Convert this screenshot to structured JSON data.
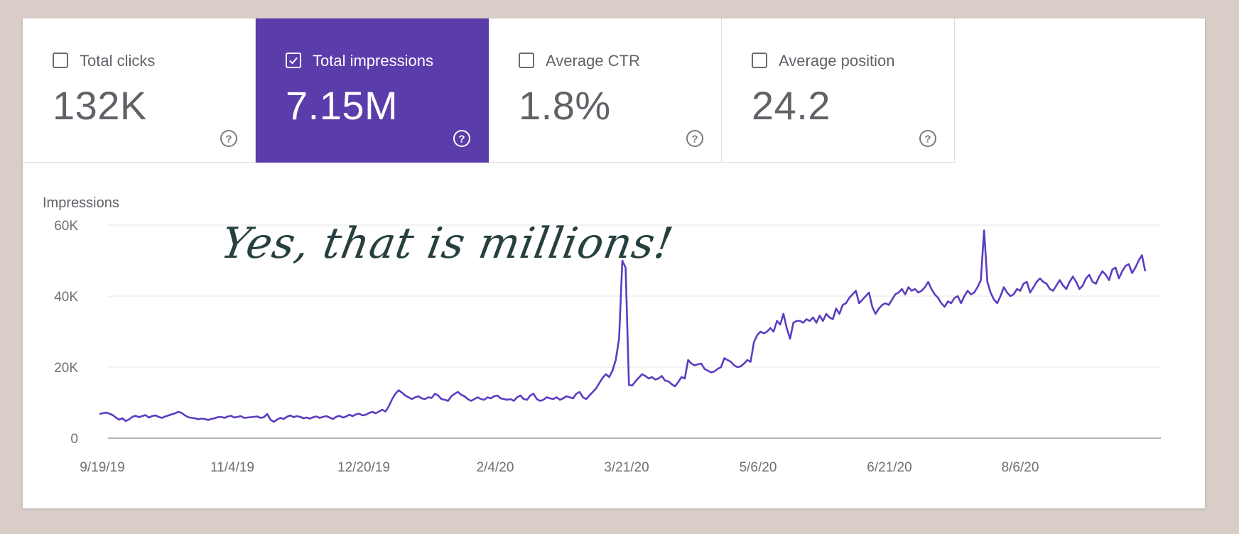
{
  "metrics": [
    {
      "label": "Total clicks",
      "value": "132K",
      "checked": false
    },
    {
      "label": "Total impressions",
      "value": "7.15M",
      "checked": true
    },
    {
      "label": "Average CTR",
      "value": "1.8%",
      "checked": false
    },
    {
      "label": "Average position",
      "value": "24.2",
      "checked": false
    }
  ],
  "annotation": "Yes, that is millions!",
  "colors": {
    "accent": "#5a3dab",
    "line": "#5b3cc0",
    "background": "#d9cdc8",
    "card": "#ffffff"
  },
  "icons": {
    "checkbox": "checkbox-icon",
    "help": "help-circle-icon"
  },
  "chart_data": {
    "type": "line",
    "title": "",
    "ylabel": "Impressions",
    "xlabel": "",
    "ylim": [
      0,
      60000
    ],
    "yticks": [
      0,
      20000,
      40000,
      60000
    ],
    "ytick_labels": [
      "0",
      "20K",
      "40K",
      "60K"
    ],
    "xtick_labels": [
      "9/19/19",
      "11/4/19",
      "12/20/19",
      "2/4/20",
      "3/21/20",
      "5/6/20",
      "6/21/20",
      "8/6/20"
    ],
    "x_start": "9/19/19",
    "grid": true,
    "legend": "none",
    "series": [
      {
        "values": [
          6800,
          7000,
          7200,
          6900,
          6500,
          5800,
          5200,
          5600,
          4800,
          5300,
          6000,
          6300,
          5900,
          6200,
          6500,
          5800,
          6200,
          6400,
          6000,
          5700,
          6100,
          6400,
          6700,
          7000,
          7400,
          7100,
          6400,
          5900,
          5700,
          5600,
          5300,
          5500,
          5400,
          5100,
          5400,
          5600,
          5900,
          6000,
          5700,
          6100,
          6300,
          5800,
          6000,
          6200,
          5700,
          5800,
          5900,
          6000,
          6100,
          5700,
          5900,
          6800,
          5200,
          4600,
          5200,
          5700,
          5400,
          6000,
          6400,
          5900,
          6200,
          6000,
          5600,
          5800,
          5500,
          5900,
          6100,
          5700,
          6000,
          6200,
          5800,
          5400,
          6000,
          6300,
          5800,
          6100,
          6600,
          6200,
          6700,
          6900,
          6400,
          6600,
          7100,
          7400,
          7000,
          7500,
          8000,
          7500,
          9000,
          11000,
          12500,
          13500,
          12800,
          12000,
          11500,
          11000,
          11500,
          11800,
          11200,
          11000,
          11500,
          11300,
          12500,
          12000,
          11000,
          10800,
          10500,
          11800,
          12500,
          13000,
          12200,
          11800,
          11000,
          10500,
          11000,
          11500,
          11000,
          10800,
          11500,
          11200,
          11800,
          12000,
          11200,
          11000,
          10800,
          11000,
          10500,
          11500,
          12000,
          11000,
          10800,
          12000,
          12500,
          11000,
          10500,
          10800,
          11500,
          11200,
          11000,
          11500,
          10800,
          11200,
          11800,
          11500,
          11200,
          12500,
          13000,
          11500,
          11000,
          12000,
          13000,
          14000,
          15500,
          17000,
          18000,
          17200,
          19000,
          22000,
          28000,
          50000,
          48000,
          15000,
          14800,
          16000,
          17000,
          18000,
          17500,
          16800,
          17200,
          16500,
          16800,
          17500,
          16200,
          16000,
          15200,
          14600,
          15800,
          17200,
          16800,
          22000,
          21000,
          20500,
          20800,
          21000,
          19500,
          19000,
          18500,
          18800,
          19500,
          20000,
          22500,
          22000,
          21500,
          20500,
          20000,
          20200,
          21000,
          22000,
          21500,
          27000,
          29000,
          30000,
          29500,
          30000,
          31000,
          30000,
          33000,
          32000,
          35000,
          31000,
          28000,
          32500,
          33000,
          33000,
          32500,
          33500,
          33000,
          34000,
          32500,
          34500,
          33000,
          35000,
          34000,
          33500,
          36500,
          35000,
          37500,
          38000,
          39500,
          40500,
          41500,
          38000,
          39000,
          40000,
          41000,
          37000,
          35000,
          36500,
          37500,
          38000,
          37500,
          39000,
          40500,
          41000,
          42000,
          40500,
          42500,
          41500,
          42000,
          41000,
          41500,
          42500,
          44000,
          42000,
          40500,
          39500,
          38000,
          37000,
          38500,
          38000,
          39500,
          40000,
          38000,
          40000,
          41500,
          40500,
          41000,
          42500,
          44500,
          58500,
          44000,
          41000,
          39000,
          38000,
          40000,
          42500,
          41000,
          40000,
          40500,
          42000,
          41500,
          43500,
          44000,
          41000,
          42500,
          44000,
          45000,
          44000,
          43500,
          42000,
          41500,
          43000,
          44500,
          43000,
          42000,
          44000,
          45500,
          44000,
          42000,
          43000,
          45000,
          46000,
          44000,
          43500,
          45500,
          47000,
          46000,
          44500,
          47500,
          48000,
          45000,
          47000,
          48500,
          49000,
          46500,
          48000,
          50000,
          51500,
          47000
        ]
      }
    ]
  }
}
